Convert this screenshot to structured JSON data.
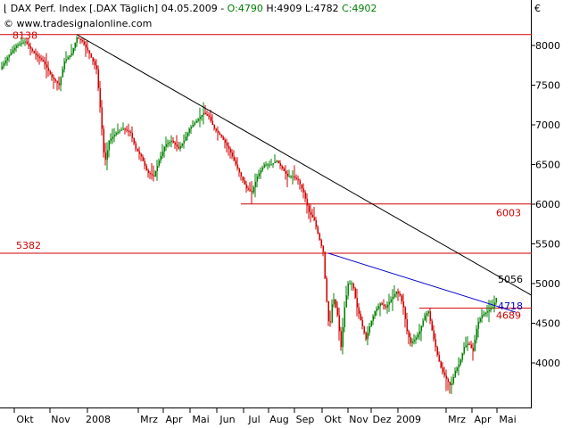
{
  "header": {
    "instrument": "DAX Perf. Index [.DAX  Täglich]",
    "date": "04.05.2009",
    "open": "O:4790",
    "high": "H:4909",
    "low": "L:4782",
    "close": "C:4902"
  },
  "copyright": "© www.tradesignalonline.com",
  "currency_symbol": "€",
  "colors": {
    "up": "#008000",
    "down": "#d00000",
    "level_line": "#d00000",
    "trend_upper": "#000000",
    "trend_lower": "#0000cc"
  },
  "chart_data": {
    "type": "candlestick",
    "ylim": [
      3500,
      8500
    ],
    "y_ticks": [
      4000,
      4500,
      5000,
      5500,
      6000,
      6500,
      7000,
      7500,
      8000
    ],
    "x_labels": [
      "Okt",
      "Nov",
      "2008",
      "Mrz",
      "Apr",
      "Mai",
      "Jun",
      "Jul",
      "Aug",
      "Sep",
      "Okt",
      "Nov",
      "Dez",
      "2009",
      "Mrz",
      "Apr",
      "Mai"
    ],
    "horizontal_levels": [
      {
        "label": "8138",
        "value": 8138
      },
      {
        "label": "6003",
        "value": 6003
      },
      {
        "label": "5382",
        "value": 5382
      },
      {
        "label": "4689",
        "value": 4689
      }
    ],
    "trendline_labels": [
      {
        "label": "5056",
        "value": 5056
      },
      {
        "label": "4718",
        "value": 4718
      }
    ],
    "price_path": [
      [
        0,
        7700
      ],
      [
        8,
        7850
      ],
      [
        18,
        8000
      ],
      [
        28,
        8050
      ],
      [
        38,
        7900
      ],
      [
        48,
        7800
      ],
      [
        58,
        7600
      ],
      [
        66,
        7500
      ],
      [
        72,
        7800
      ],
      [
        80,
        7900
      ],
      [
        86,
        8100
      ],
      [
        92,
        8050
      ],
      [
        100,
        7900
      ],
      [
        108,
        7700
      ],
      [
        113,
        7100
      ],
      [
        117,
        6500
      ],
      [
        122,
        6800
      ],
      [
        130,
        6900
      ],
      [
        138,
        6950
      ],
      [
        146,
        6900
      ],
      [
        152,
        6700
      ],
      [
        158,
        6600
      ],
      [
        165,
        6400
      ],
      [
        172,
        6350
      ],
      [
        178,
        6550
      ],
      [
        185,
        6750
      ],
      [
        192,
        6800
      ],
      [
        200,
        6700
      ],
      [
        206,
        6800
      ],
      [
        212,
        6950
      ],
      [
        220,
        7050
      ],
      [
        228,
        7150
      ],
      [
        234,
        7100
      ],
      [
        240,
        6950
      ],
      [
        248,
        6850
      ],
      [
        256,
        6700
      ],
      [
        262,
        6550
      ],
      [
        270,
        6350
      ],
      [
        276,
        6200
      ],
      [
        282,
        6150
      ],
      [
        288,
        6350
      ],
      [
        296,
        6500
      ],
      [
        304,
        6500
      ],
      [
        310,
        6550
      ],
      [
        316,
        6450
      ],
      [
        322,
        6350
      ],
      [
        328,
        6350
      ],
      [
        334,
        6300
      ],
      [
        340,
        6150
      ],
      [
        346,
        5900
      ],
      [
        352,
        5800
      ],
      [
        358,
        5550
      ],
      [
        362,
        5400
      ],
      [
        365,
        4900
      ],
      [
        369,
        4400
      ],
      [
        373,
        4850
      ],
      [
        378,
        4600
      ],
      [
        382,
        4200
      ],
      [
        386,
        4700
      ],
      [
        390,
        5000
      ],
      [
        395,
        5000
      ],
      [
        400,
        4700
      ],
      [
        405,
        4500
      ],
      [
        410,
        4300
      ],
      [
        415,
        4500
      ],
      [
        420,
        4650
      ],
      [
        426,
        4750
      ],
      [
        432,
        4700
      ],
      [
        438,
        4800
      ],
      [
        444,
        4900
      ],
      [
        448,
        4850
      ],
      [
        452,
        4700
      ],
      [
        456,
        4400
      ],
      [
        460,
        4250
      ],
      [
        465,
        4300
      ],
      [
        470,
        4400
      ],
      [
        476,
        4600
      ],
      [
        480,
        4650
      ],
      [
        485,
        4350
      ],
      [
        490,
        4100
      ],
      [
        495,
        3900
      ],
      [
        500,
        3800
      ],
      [
        505,
        3700
      ],
      [
        510,
        3900
      ],
      [
        515,
        4000
      ],
      [
        520,
        4200
      ],
      [
        525,
        4250
      ],
      [
        530,
        4150
      ],
      [
        535,
        4500
      ],
      [
        540,
        4600
      ],
      [
        546,
        4650
      ],
      [
        552,
        4700
      ],
      [
        557,
        4850
      ]
    ]
  }
}
